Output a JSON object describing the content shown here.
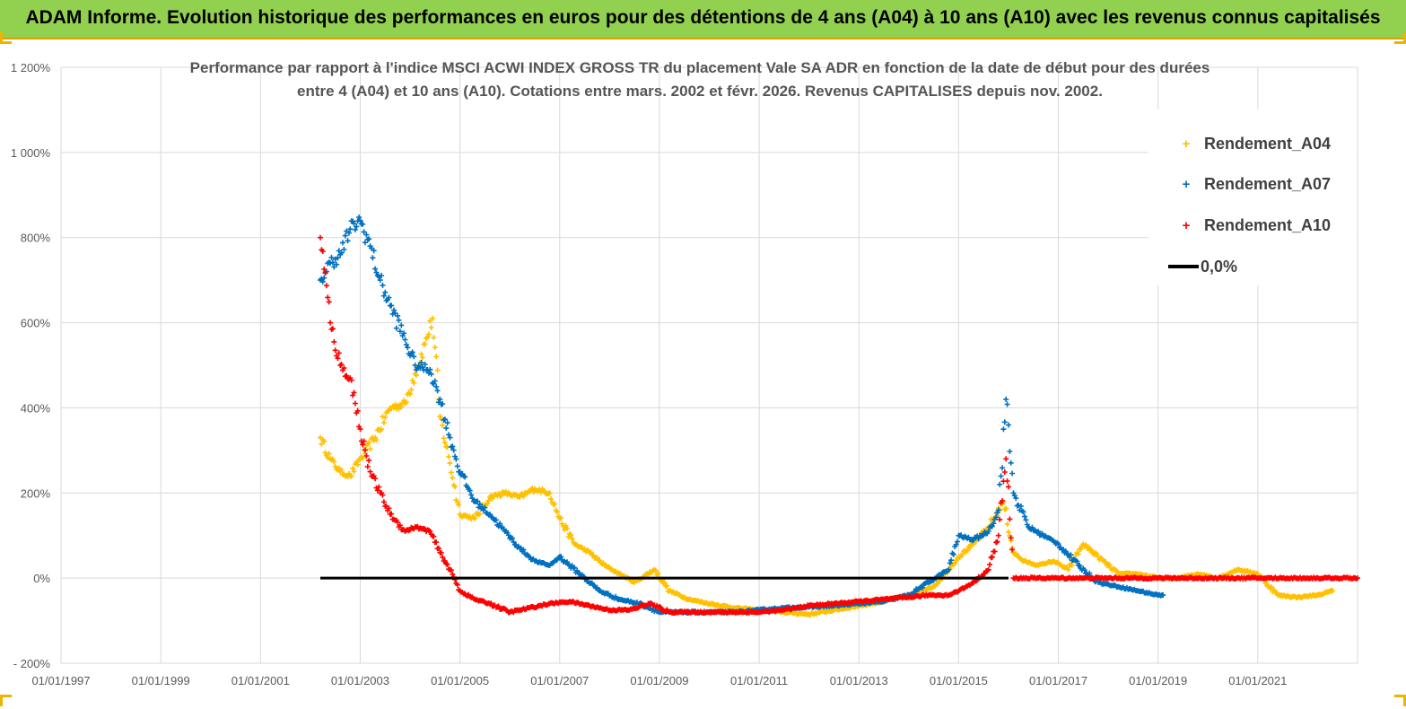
{
  "header": {
    "title": "ADAM Informe. Evolution historique des performances en euros pour des détentions de 4 ans (A04) à 10 ans (A10) avec les revenus connus capitalisés"
  },
  "chart_data": {
    "type": "scatter",
    "title_line1": "Performance par rapport à l'indice MSCI ACWI INDEX GROSS TR  du placement Vale SA ADR en fonction de la date de début pour des durées",
    "title_line2": "entre 4 (A04) et 10 ans (A10). Cotations entre mars. 2002 et févr. 2026. Revenus CAPITALISES depuis nov. 2002.",
    "xlabel": "",
    "ylabel": "",
    "xlim": [
      "01/01/1997",
      "01/01/2023"
    ],
    "ylim": [
      -200,
      1200
    ],
    "y_ticks": [
      -200,
      0,
      200,
      400,
      600,
      800,
      1000,
      1200
    ],
    "y_tick_labels": [
      "- 200%",
      "0%",
      "200%",
      "400%",
      "600%",
      "800%",
      "1 000%",
      "1 200%"
    ],
    "x_tick_labels": [
      "01/01/1997",
      "01/01/1999",
      "01/01/2001",
      "01/01/2003",
      "01/01/2005",
      "01/01/2007",
      "01/01/2009",
      "01/01/2011",
      "01/01/2013",
      "01/01/2015",
      "01/01/2017",
      "01/01/2019",
      "01/01/2021"
    ],
    "grid": true,
    "legend_position": "top-right",
    "series": [
      {
        "name": "Rendement_A04",
        "color": "#ffc000",
        "x": [
          2002.2,
          2002.4,
          2002.6,
          2002.8,
          2003.0,
          2003.3,
          2003.6,
          2003.9,
          2004.1,
          2004.3,
          2004.45,
          2004.6,
          2004.8,
          2005.0,
          2005.3,
          2005.6,
          2005.9,
          2006.2,
          2006.5,
          2006.8,
          2007.0,
          2007.3,
          2007.6,
          2007.9,
          2008.2,
          2008.5,
          2008.9,
          2009.2,
          2009.6,
          2010.0,
          2010.5,
          2011.0,
          2011.5,
          2012.0,
          2012.5,
          2013.0,
          2013.5,
          2014.0,
          2014.5,
          2014.8,
          2015.0,
          2015.3,
          2015.6,
          2015.9,
          2016.1,
          2016.3,
          2016.6,
          2016.9,
          2017.2,
          2017.5,
          2017.8,
          2018.2,
          2018.6,
          2019.0,
          2019.4,
          2019.8,
          2020.2,
          2020.6,
          2021.0,
          2021.4,
          2021.8,
          2022.2,
          2022.5
        ],
        "y": [
          330,
          280,
          250,
          240,
          280,
          330,
          400,
          410,
          480,
          550,
          610,
          380,
          270,
          150,
          140,
          190,
          200,
          190,
          210,
          200,
          140,
          80,
          60,
          30,
          10,
          -10,
          20,
          -30,
          -50,
          -60,
          -70,
          -75,
          -80,
          -85,
          -75,
          -65,
          -55,
          -40,
          -20,
          20,
          50,
          80,
          120,
          180,
          60,
          40,
          30,
          40,
          20,
          80,
          50,
          10,
          10,
          0,
          0,
          10,
          0,
          20,
          10,
          -40,
          -45,
          -40,
          -30
        ]
      },
      {
        "name": "Rendement_A07",
        "color": "#0070c0",
        "x": [
          2002.2,
          2002.4,
          2002.6,
          2002.8,
          2003.0,
          2003.2,
          2003.4,
          2003.6,
          2003.9,
          2004.1,
          2004.4,
          2004.6,
          2004.8,
          2005.0,
          2005.3,
          2005.6,
          2005.9,
          2006.2,
          2006.5,
          2006.8,
          2007.0,
          2007.4,
          2007.8,
          2008.2,
          2008.6,
          2009.0,
          2009.5,
          2010.0,
          2010.5,
          2011.0,
          2011.5,
          2012.0,
          2012.5,
          2013.0,
          2013.5,
          2014.0,
          2014.4,
          2014.8,
          2015.0,
          2015.3,
          2015.6,
          2015.8,
          2015.95,
          2016.1,
          2016.4,
          2016.7,
          2017.0,
          2017.4,
          2017.8,
          2018.2,
          2018.6,
          2019.0,
          2019.1
        ],
        "y": [
          700,
          740,
          760,
          820,
          840,
          780,
          700,
          640,
          560,
          500,
          490,
          420,
          330,
          250,
          180,
          150,
          110,
          70,
          40,
          30,
          50,
          10,
          -30,
          -50,
          -60,
          -80,
          -80,
          -80,
          -80,
          -75,
          -70,
          -68,
          -65,
          -60,
          -55,
          -40,
          -10,
          20,
          100,
          90,
          110,
          160,
          420,
          200,
          120,
          100,
          80,
          30,
          -10,
          -20,
          -30,
          -40,
          -40
        ]
      },
      {
        "name": "Rendement_A10",
        "color": "#ff0000",
        "x": [
          2002.2,
          2002.4,
          2002.6,
          2002.8,
          2003.0,
          2003.2,
          2003.4,
          2003.6,
          2003.9,
          2004.1,
          2004.4,
          2004.6,
          2004.8,
          2005.0,
          2005.3,
          2005.6,
          2006.0,
          2006.4,
          2006.8,
          2007.2,
          2007.6,
          2008.0,
          2008.4,
          2008.8,
          2009.2,
          2009.6,
          2010.0,
          2010.5,
          2011.0,
          2011.5,
          2012.0,
          2012.5,
          2013.0,
          2013.5,
          2014.0,
          2014.4,
          2014.8,
          2015.0,
          2015.3,
          2015.6,
          2015.8,
          2015.95,
          2016.1,
          2016.5,
          2017.0,
          2017.5,
          2018.0,
          2018.5,
          2019.0,
          2019.5,
          2020.0,
          2020.5,
          2021.0,
          2021.5,
          2022.0,
          2022.5,
          2023.0
        ],
        "y": [
          800,
          600,
          500,
          470,
          350,
          250,
          200,
          150,
          110,
          120,
          110,
          60,
          20,
          -30,
          -50,
          -60,
          -80,
          -70,
          -60,
          -55,
          -65,
          -75,
          -75,
          -60,
          -80,
          -80,
          -80,
          -80,
          -80,
          -75,
          -65,
          -60,
          -55,
          -50,
          -45,
          -40,
          -40,
          -30,
          -10,
          20,
          100,
          280,
          0,
          0,
          0,
          0,
          0,
          0,
          0,
          0,
          0,
          0,
          0,
          0,
          0,
          0,
          0
        ]
      }
    ],
    "reference_line": {
      "name": "0,0%",
      "y": 0,
      "x_start": 2002.2,
      "x_end": 2016.0,
      "color": "#000000"
    }
  },
  "legend": {
    "items": [
      {
        "label": "Rendement_A04",
        "color": "#ffc000",
        "marker": "+"
      },
      {
        "label": "Rendement_A07",
        "color": "#0070c0",
        "marker": "+"
      },
      {
        "label": "Rendement_A10",
        "color": "#ff0000",
        "marker": "+"
      },
      {
        "label": "0,0%",
        "color": "#000000",
        "marker": "line"
      }
    ]
  }
}
